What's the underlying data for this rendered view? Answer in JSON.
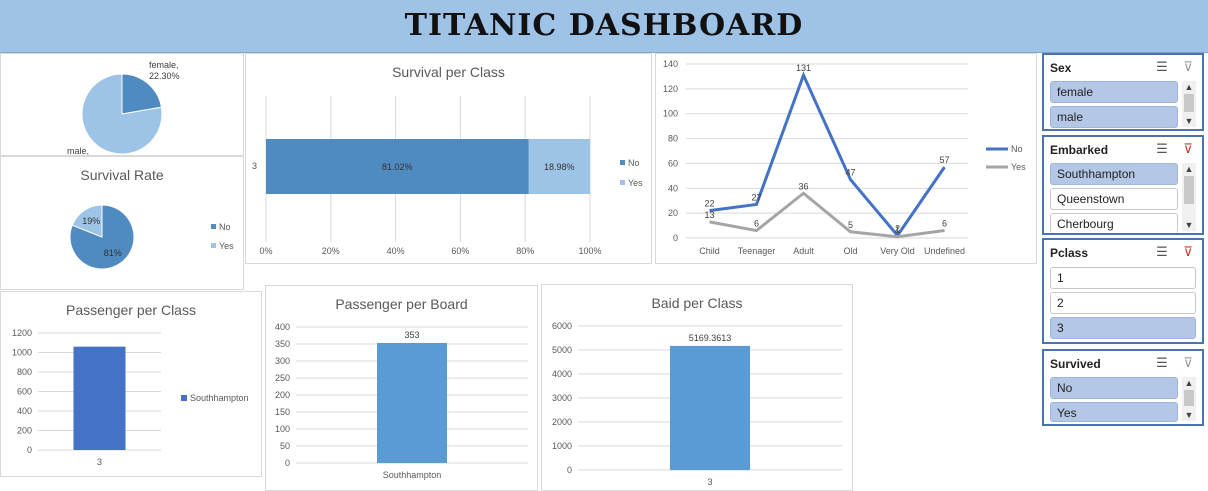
{
  "header": {
    "title": "TITANIC DASHBOARD"
  },
  "colors": {
    "dark_blue": "#4f8ac0",
    "light_blue": "#9dc3e6",
    "line_no": "#4472c4",
    "line_yes": "#a5a5a5",
    "bar_blue": "#5b9bd5",
    "bar_dark": "#4472c4"
  },
  "chart_data": [
    {
      "id": "sex_pie",
      "type": "pie",
      "slices": [
        {
          "name": "female",
          "value": 22.3,
          "label": "female,\n22.30%"
        },
        {
          "name": "male",
          "value": 77.7,
          "label": "male,"
        }
      ],
      "labels": {
        "female": "female,",
        "female_pct": "22.30%",
        "male": "male,"
      }
    },
    {
      "id": "survival_per_class",
      "type": "bar",
      "orientation": "horizontal",
      "stacked": "100%",
      "title": "Survival per Class",
      "categories": [
        "3"
      ],
      "series": [
        {
          "name": "No",
          "values": [
            81.02
          ]
        },
        {
          "name": "Yes",
          "values": [
            18.98
          ]
        }
      ],
      "data_labels": [
        "81.02%",
        "18.98%"
      ],
      "xticks": [
        "0%",
        "20%",
        "40%",
        "60%",
        "80%",
        "100%"
      ],
      "xlim": [
        0,
        100
      ],
      "legend": "right"
    },
    {
      "id": "survival_by_age",
      "type": "line",
      "categories": [
        "Child",
        "Teenager",
        "Adult",
        "Old",
        "Very Old",
        "Undefined"
      ],
      "series": [
        {
          "name": "No",
          "values": [
            22,
            27,
            131,
            47,
            2,
            57
          ]
        },
        {
          "name": "Yes",
          "values": [
            13,
            6,
            36,
            5,
            1,
            6
          ]
        }
      ],
      "yticks": [
        "0",
        "20",
        "40",
        "60",
        "80",
        "100",
        "120",
        "140"
      ],
      "ylim": [
        0,
        140
      ],
      "grid": true,
      "legend": "right"
    },
    {
      "id": "survival_rate",
      "type": "pie",
      "title": "Survival Rate",
      "slices": [
        {
          "name": "No",
          "value": 81,
          "label": "81%"
        },
        {
          "name": "Yes",
          "value": 19,
          "label": "19%"
        }
      ],
      "legend": "right"
    },
    {
      "id": "passenger_per_class",
      "type": "bar",
      "title": "Passenger per Class",
      "categories": [
        "3"
      ],
      "series": [
        {
          "name": "Southhampton",
          "values": [
            1060
          ]
        }
      ],
      "yticks": [
        "0",
        "200",
        "400",
        "600",
        "800",
        "1000",
        "1200"
      ],
      "ylim": [
        0,
        1200
      ],
      "grid": true,
      "legend": "right"
    },
    {
      "id": "passenger_per_board",
      "type": "bar",
      "title": "Passenger per Board",
      "categories": [
        "Southhampton"
      ],
      "series": [
        {
          "values": [
            353
          ]
        }
      ],
      "data_labels": [
        "353"
      ],
      "yticks": [
        "0",
        "50",
        "100",
        "150",
        "200",
        "250",
        "300",
        "350",
        "400"
      ],
      "ylim": [
        0,
        400
      ],
      "grid": true
    },
    {
      "id": "baid_per_class",
      "type": "bar",
      "title": "Baid per Class",
      "categories": [
        "3"
      ],
      "series": [
        {
          "values": [
            5169.3613
          ]
        }
      ],
      "data_labels": [
        "5169.3613"
      ],
      "yticks": [
        "0",
        "1000",
        "2000",
        "3000",
        "4000",
        "5000",
        "6000"
      ],
      "ylim": [
        0,
        6000
      ],
      "grid": true
    }
  ],
  "slicers": {
    "sex": {
      "title": "Sex",
      "items": [
        {
          "label": "female",
          "selected": true
        },
        {
          "label": "male",
          "selected": true
        }
      ]
    },
    "embarked": {
      "title": "Embarked",
      "items": [
        {
          "label": "Southhampton",
          "selected": true
        },
        {
          "label": "Queenstown",
          "selected": false
        },
        {
          "label": "Cherbourg",
          "selected": false
        }
      ]
    },
    "pclass": {
      "title": "Pclass",
      "items": [
        {
          "label": "1",
          "selected": false
        },
        {
          "label": "2",
          "selected": false
        },
        {
          "label": "3",
          "selected": true
        }
      ]
    },
    "survived": {
      "title": "Survived",
      "items": [
        {
          "label": "No",
          "selected": true
        },
        {
          "label": "Yes",
          "selected": true
        }
      ]
    }
  },
  "icons": {
    "multi_select": "multi-select-icon",
    "clear_filter": "clear-filter-icon",
    "scroll_up": "scroll-up-icon",
    "scroll_down": "scroll-down-icon"
  }
}
